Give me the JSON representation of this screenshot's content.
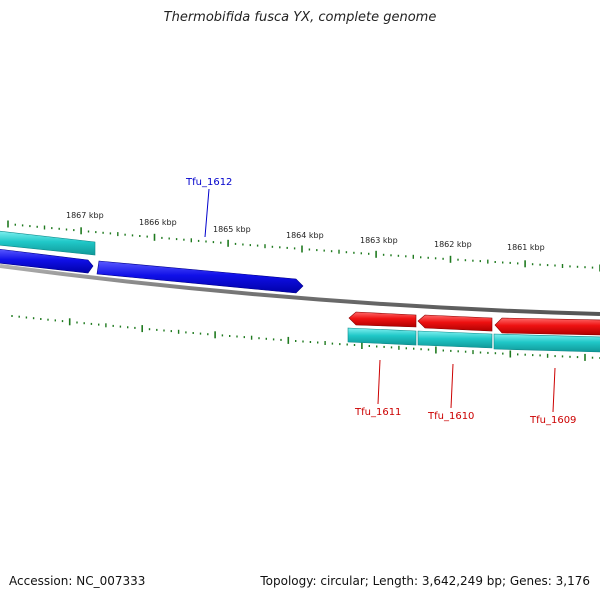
{
  "title": "Thermobifida fusca YX, complete genome",
  "footer": {
    "accession": "Accession: NC_007333",
    "summary": "Topology: circular; Length: 3,642,249 bp; Genes: 3,176"
  },
  "colors": {
    "backbone": "#7a7a7a",
    "tick": "#1f7a1f",
    "forward_gene": "#1010e8",
    "reverse_gene": "#ee1111",
    "cds": "#20c8c8",
    "forward_label": "#0000cc",
    "reverse_label": "#cc0000"
  },
  "scale": {
    "ticks": [
      {
        "label": "1867 kbp"
      },
      {
        "label": "1866 kbp"
      },
      {
        "label": "1865 kbp"
      },
      {
        "label": "1864 kbp"
      },
      {
        "label": "1863 kbp"
      },
      {
        "label": "1862 kbp"
      },
      {
        "label": "1861 kbp"
      }
    ]
  },
  "genes": [
    {
      "name": "Tfu_1612",
      "strand": "forward"
    },
    {
      "name": "Tfu_1611",
      "strand": "reverse"
    },
    {
      "name": "Tfu_1610",
      "strand": "reverse"
    },
    {
      "name": "Tfu_1609",
      "strand": "reverse"
    }
  ]
}
